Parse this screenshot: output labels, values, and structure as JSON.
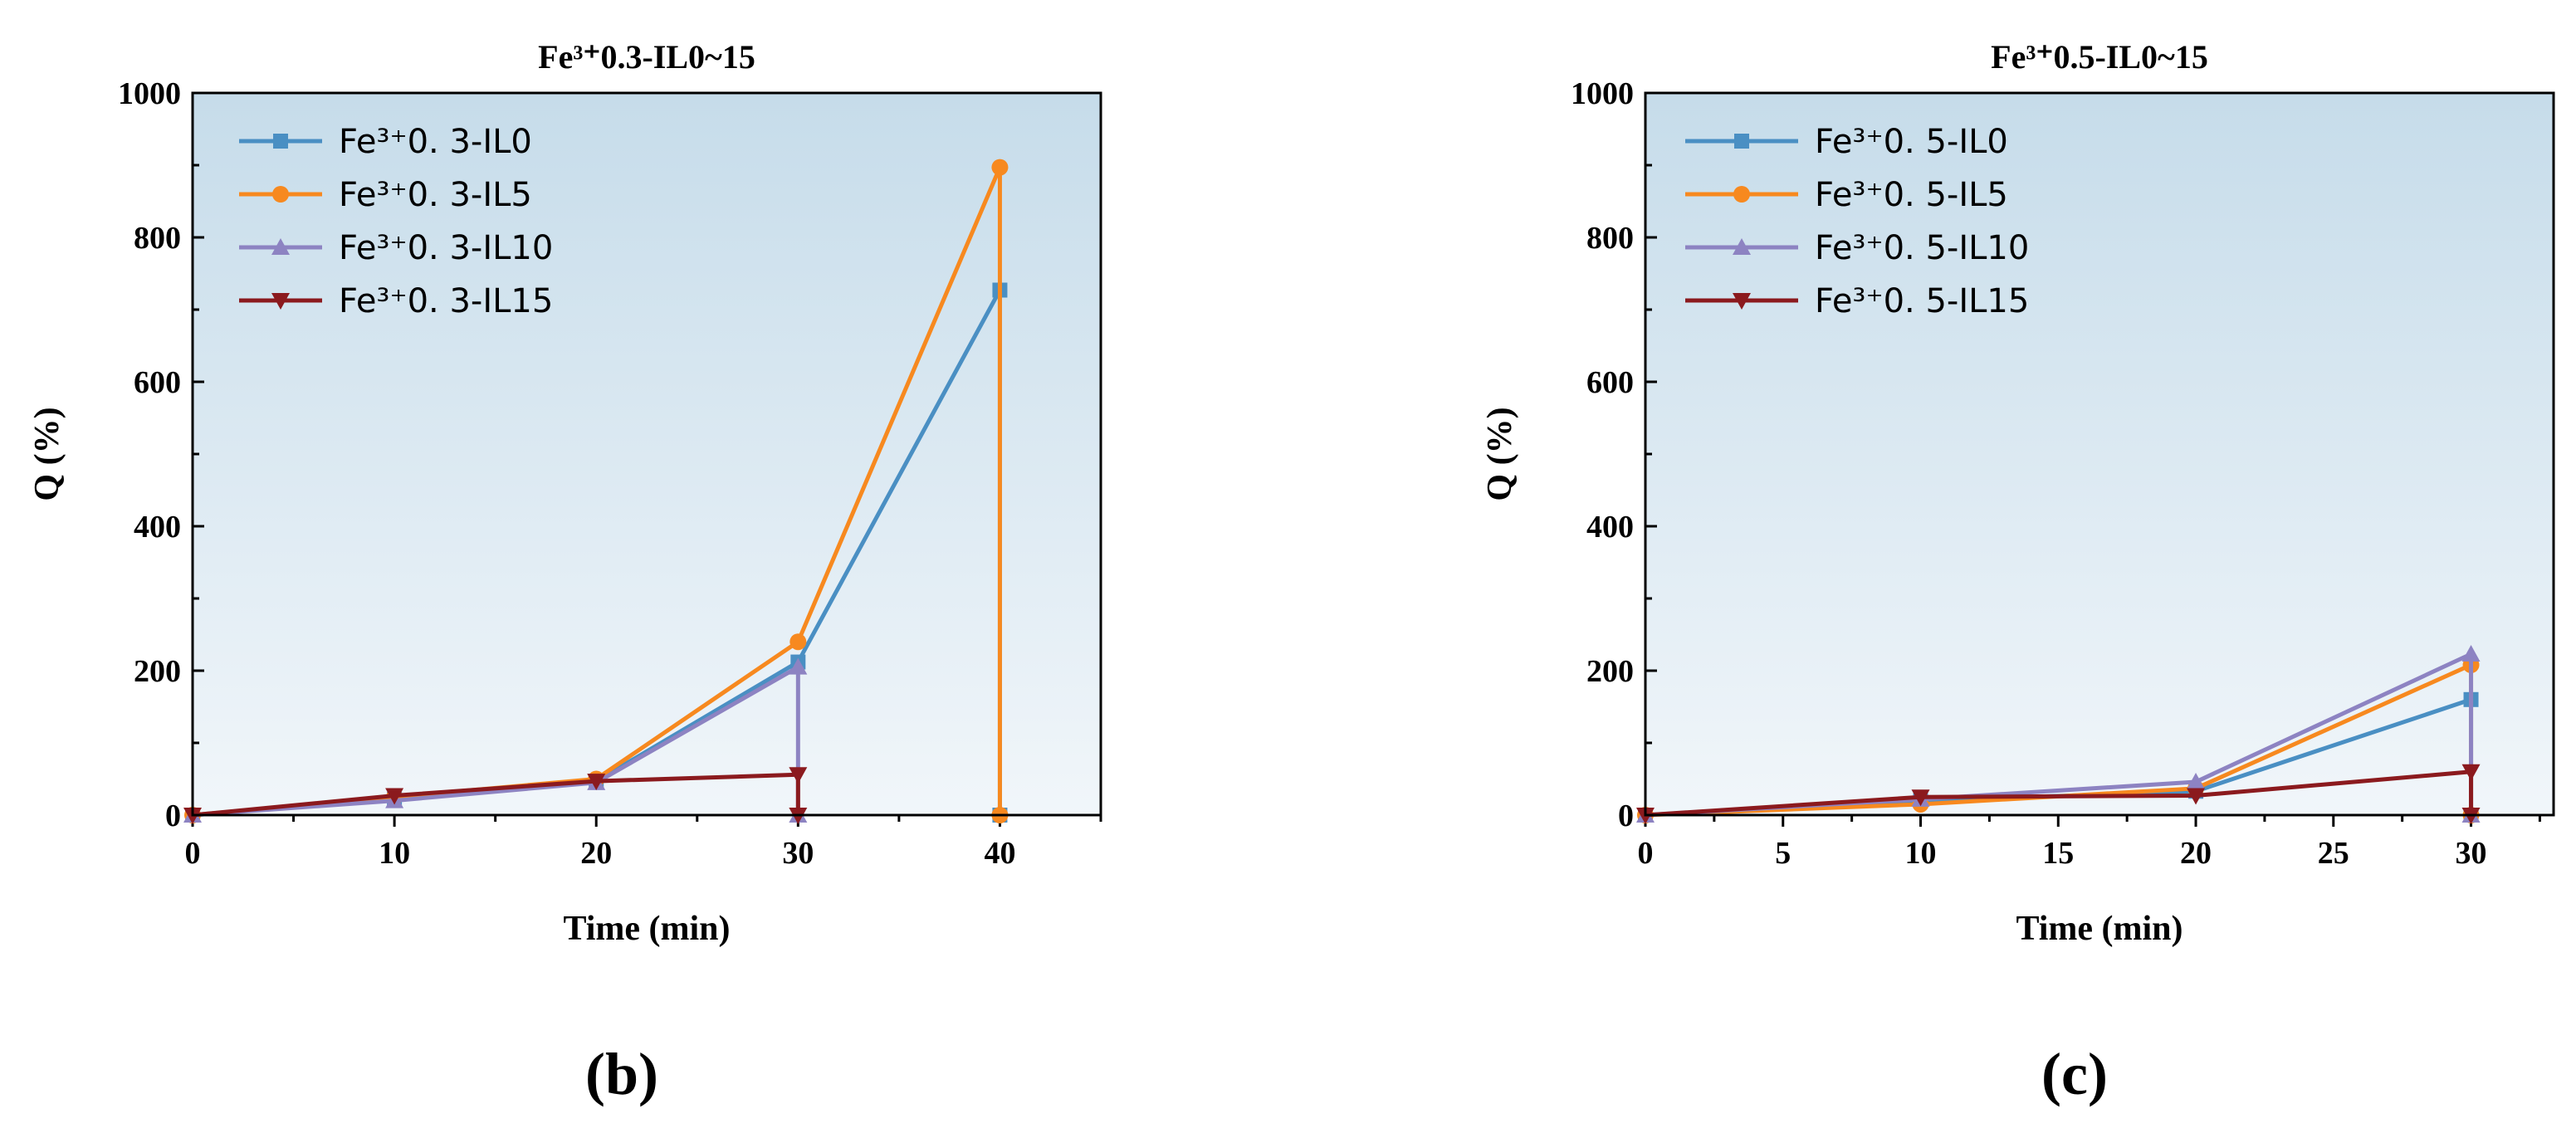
{
  "colors": {
    "background_top": "#c6dcea",
    "background_bottom": "#f1f6fa",
    "axis": "#000000"
  },
  "chart_data": [
    {
      "type": "line",
      "panel_label": "(b)",
      "title": "Fe³⁺0.3-IL0~15",
      "xlabel": "Time (min)",
      "ylabel": "Q (%)",
      "xlim": [
        0,
        45
      ],
      "ylim": [
        0,
        1000
      ],
      "xticks": [
        0,
        10,
        20,
        30,
        40
      ],
      "yticks": [
        0,
        200,
        400,
        600,
        800,
        1000
      ],
      "legend_position": "top-left",
      "series": [
        {
          "name": "Fe³⁺0. 3-IL0",
          "color": "#4a8fc3",
          "marker": "square",
          "x": [
            0,
            10,
            20,
            30,
            40
          ],
          "y": [
            0,
            22,
            47,
            212,
            727
          ]
        },
        {
          "name": "Fe³⁺0. 3-IL5",
          "color": "#f7891f",
          "marker": "circle",
          "x": [
            0,
            10,
            20,
            30,
            40
          ],
          "y": [
            0,
            25,
            50,
            240,
            897
          ]
        },
        {
          "name": "Fe³⁺0. 3-IL10",
          "color": "#8d83c2",
          "marker": "triangle-up",
          "x": [
            0,
            10,
            20,
            30
          ],
          "y": [
            0,
            20,
            45,
            205
          ]
        },
        {
          "name": "Fe³⁺0. 3-IL15",
          "color": "#8b1a1e",
          "marker": "triangle-down",
          "x": [
            0,
            10,
            20,
            30
          ],
          "y": [
            0,
            27,
            47,
            56
          ]
        }
      ]
    },
    {
      "type": "line",
      "panel_label": "(c)",
      "title": "Fe³⁺0.5-IL0~15",
      "xlabel": "Time (min)",
      "ylabel": "Q (%)",
      "xlim": [
        0,
        33
      ],
      "ylim": [
        0,
        1000
      ],
      "xticks": [
        0,
        5,
        10,
        15,
        20,
        25,
        30
      ],
      "yticks": [
        0,
        200,
        400,
        600,
        800,
        1000
      ],
      "legend_position": "top-left",
      "series": [
        {
          "name": "Fe³⁺0. 5-IL0",
          "color": "#4a8fc3",
          "marker": "square",
          "x": [
            0,
            10,
            20,
            30
          ],
          "y": [
            0,
            20,
            33,
            160
          ]
        },
        {
          "name": "Fe³⁺0. 5-IL5",
          "color": "#f7891f",
          "marker": "circle",
          "x": [
            0,
            10,
            20,
            30
          ],
          "y": [
            0,
            15,
            37,
            208
          ]
        },
        {
          "name": "Fe³⁺0. 5-IL10",
          "color": "#8d83c2",
          "marker": "triangle-up",
          "x": [
            0,
            10,
            20,
            30
          ],
          "y": [
            0,
            22,
            46,
            223
          ]
        },
        {
          "name": "Fe³⁺0. 5-IL15",
          "color": "#8b1a1e",
          "marker": "triangle-down",
          "x": [
            0,
            10,
            20,
            30
          ],
          "y": [
            0,
            25,
            27,
            60
          ]
        }
      ]
    }
  ]
}
